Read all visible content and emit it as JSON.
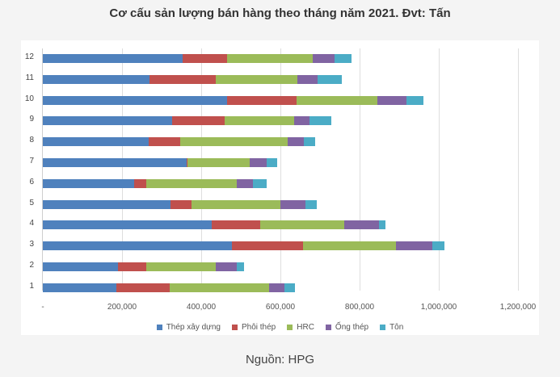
{
  "title": "Cơ cấu sản lượng bán hàng theo tháng năm 2021. Đvt: Tấn",
  "source": "Nguồn: HPG",
  "colors": {
    "Thép xây dựng": "#4f81bd",
    "Phôi thép": "#c0504d",
    "HRC": "#9bbb59",
    "Ống thép": "#8064a2",
    "Tôn": "#4bacc6"
  },
  "chart_data": {
    "type": "bar",
    "orientation": "horizontal",
    "stacked": true,
    "title": "Cơ cấu sản lượng bán hàng theo tháng năm 2021. Đvt: Tấn",
    "xlabel": "",
    "ylabel": "",
    "xlim": [
      0,
      1200000
    ],
    "x_ticks": [
      "-",
      "200,000",
      "400,000",
      "600,000",
      "800,000",
      "1,000,000",
      "1,200,000"
    ],
    "grid": true,
    "legend_position": "bottom",
    "categories": [
      "1",
      "2",
      "3",
      "4",
      "5",
      "6",
      "7",
      "8",
      "9",
      "10",
      "11",
      "12"
    ],
    "series": [
      {
        "name": "Thép xây dựng",
        "values": [
          186000,
          190000,
          478000,
          427000,
          322000,
          231000,
          363000,
          267000,
          327000,
          465000,
          269000,
          353000
        ]
      },
      {
        "name": "Phôi thép",
        "values": [
          134000,
          71000,
          179000,
          122000,
          54000,
          30000,
          2000,
          80000,
          132000,
          176000,
          168000,
          112000
        ]
      },
      {
        "name": "HRC",
        "values": [
          251000,
          176000,
          235000,
          212000,
          224000,
          229000,
          157000,
          271000,
          176000,
          204000,
          206000,
          217000
        ]
      },
      {
        "name": "Ống thép",
        "values": [
          39000,
          53000,
          92000,
          88000,
          63000,
          41000,
          43000,
          41000,
          38000,
          73000,
          51000,
          55000
        ]
      },
      {
        "name": "Tôn",
        "values": [
          27000,
          18000,
          30000,
          16000,
          29000,
          34000,
          27000,
          29000,
          56000,
          43000,
          61000,
          43000
        ]
      }
    ]
  }
}
